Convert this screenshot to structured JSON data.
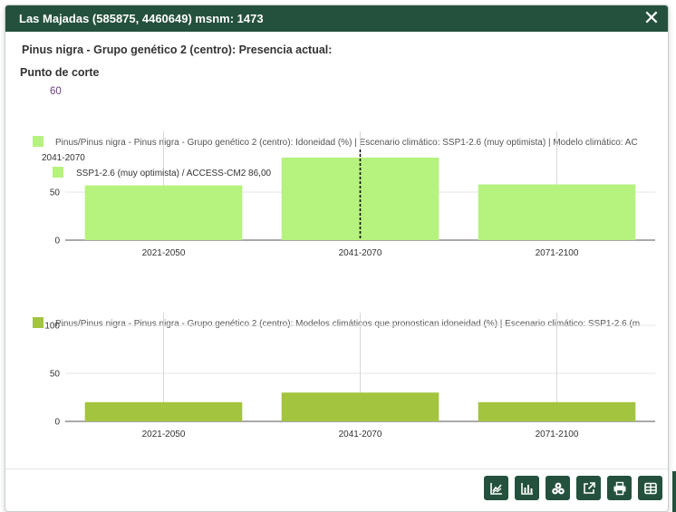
{
  "window": {
    "title": "Las Majadas (585875, 4460649) msnm: 1473",
    "close_glyph": "✕"
  },
  "info": {
    "species_title": "Pinus nigra - Grupo genético 2 (centro): Presencia actual:",
    "cut_label": "Punto de corte",
    "cut_value": "60"
  },
  "chart_data": [
    {
      "type": "bar",
      "legend": "Pinus/Pinus nigra - Pinus nigra - Grupo genético 2 (centro): Idoneidad (%)  | Escenario climático: SSP1-2.6 (muy optimista) | Modelo climático: AC",
      "categories": [
        "2021-2050",
        "2041-2070",
        "2071-2100"
      ],
      "values": [
        57,
        86,
        58
      ],
      "ylim": [
        0,
        100
      ],
      "yticks": [
        0,
        50
      ],
      "color": "#b5f27e",
      "grid": true,
      "hover": {
        "category": "2041-2070",
        "title": "2041-2070",
        "entry": "SSP1-2.6 (muy optimista) / ACCESS-CM2 86,00"
      }
    },
    {
      "type": "bar",
      "legend": "Pinus/Pinus nigra - Pinus nigra - Grupo genético 2 (centro): Modelos climáticos que pronostican idoneidad (%)  | Escenario climático: SSP1-2.6 (m",
      "categories": [
        "2021-2050",
        "2041-2070",
        "2071-2100"
      ],
      "values": [
        20,
        30,
        20
      ],
      "ylim": [
        0,
        100
      ],
      "yticks": [
        0,
        50,
        100
      ],
      "color": "#a3c43f",
      "grid": true
    }
  ],
  "toolbar": [
    {
      "icon": "line-chart-icon"
    },
    {
      "icon": "bar-chart-icon"
    },
    {
      "icon": "three-circles-icon"
    },
    {
      "icon": "external-link-icon"
    },
    {
      "icon": "print-icon"
    },
    {
      "icon": "table-icon"
    }
  ],
  "colors": {
    "header": "#24513d",
    "accent_purple": "#6b3f7a"
  }
}
